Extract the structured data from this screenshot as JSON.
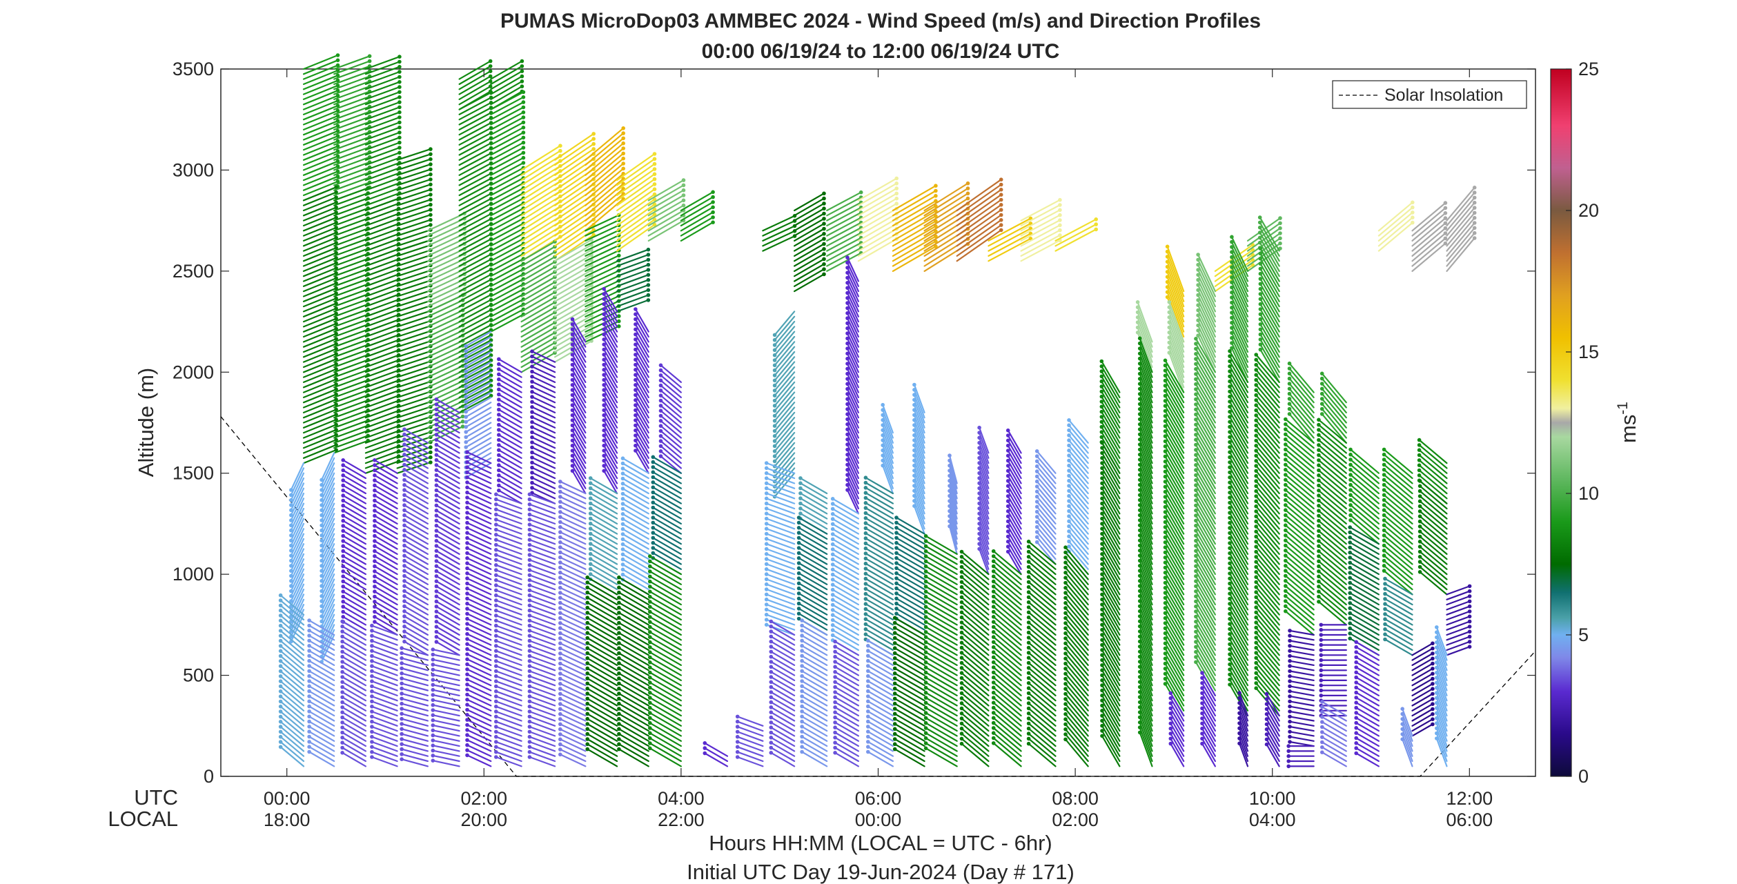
{
  "chart_data": {
    "type": "wind_barb_profile",
    "title": "PUMAS MicroDop03 AMMBEC 2024 - Wind Speed (m/s) and Direction Profiles",
    "subtitle": "00:00 06/19/24 to 12:00 06/19/24  UTC",
    "xlabel": "Hours HH:MM  (LOCAL = UTC - 6hr)",
    "xlabel2": "Initial UTC Day 19-Jun-2024 (Day # 171)",
    "ylabel": "Altitude (m)",
    "row_label_utc": "UTC",
    "row_label_local": "LOCAL",
    "xlim_hours": [
      -0.67,
      12.67
    ],
    "ylim": [
      0,
      3500
    ],
    "y_ticks": [
      0,
      500,
      1000,
      1500,
      2000,
      2500,
      3000,
      3500
    ],
    "y_tick_labels": [
      "0",
      "500",
      "1000",
      "1500",
      "2000",
      "2500",
      "3000",
      "3500"
    ],
    "x_ticks": [
      0,
      2,
      4,
      6,
      8,
      10,
      12
    ],
    "x_tick_utc": [
      "00:00",
      "02:00",
      "04:00",
      "06:00",
      "08:00",
      "10:00",
      "12:00"
    ],
    "x_tick_local": [
      "18:00",
      "20:00",
      "22:00",
      "00:00",
      "02:00",
      "04:00",
      "06:00"
    ],
    "legend": {
      "entries": [
        "Solar Insolation"
      ],
      "placement": "top-right",
      "style": "dashed"
    },
    "colorbar": {
      "label": "ms",
      "label_exp": "-1",
      "range": [
        0,
        25
      ],
      "ticks": [
        0,
        5,
        10,
        15,
        20,
        25
      ],
      "tick_labels": [
        "0",
        "5",
        "10",
        "15",
        "20",
        "25"
      ],
      "stops": [
        {
          "v": 0,
          "c": "#0d0a3a"
        },
        {
          "v": 1.5,
          "c": "#2a0a8a"
        },
        {
          "v": 3,
          "c": "#5a2ad0"
        },
        {
          "v": 4.2,
          "c": "#7f88e8"
        },
        {
          "v": 5,
          "c": "#70b0f0"
        },
        {
          "v": 5.6,
          "c": "#4aa0a8"
        },
        {
          "v": 6.5,
          "c": "#107070"
        },
        {
          "v": 7.5,
          "c": "#006b00"
        },
        {
          "v": 9,
          "c": "#1a9a1a"
        },
        {
          "v": 10.5,
          "c": "#60b860"
        },
        {
          "v": 12,
          "c": "#a8d8a0"
        },
        {
          "v": 12.5,
          "c": "#a8a8a8"
        },
        {
          "v": 13,
          "c": "#f0f0a0"
        },
        {
          "v": 14,
          "c": "#f0e030"
        },
        {
          "v": 15.5,
          "c": "#f0c000"
        },
        {
          "v": 17,
          "c": "#e0a020"
        },
        {
          "v": 18.5,
          "c": "#c07030"
        },
        {
          "v": 20,
          "c": "#7a5a40"
        },
        {
          "v": 21.5,
          "c": "#c06090"
        },
        {
          "v": 23,
          "c": "#f04070"
        },
        {
          "v": 25,
          "c": "#c00020"
        }
      ]
    },
    "solar_insolation": {
      "x_hours": [
        -0.67,
        2.33,
        11.5,
        12.67
      ],
      "y_m": [
        1780,
        0,
        0,
        620
      ]
    },
    "profiles": [
      {
        "t": 0.17,
        "segments": [
          [
            2850,
            3500,
            9,
            68
          ],
          [
            1550,
            2850,
            8,
            68
          ],
          [
            800,
            1550,
            5,
            205
          ],
          [
            50,
            800,
            5.2,
            310
          ]
        ]
      },
      {
        "t": 0.48,
        "segments": [
          [
            2850,
            3500,
            9.5,
            70
          ],
          [
            1600,
            2850,
            8.5,
            70
          ],
          [
            700,
            1600,
            5,
            205
          ],
          [
            50,
            700,
            4.5,
            300
          ]
        ]
      },
      {
        "t": 0.8,
        "segments": [
          [
            2800,
            3500,
            8.5,
            70
          ],
          [
            1500,
            2800,
            8,
            70
          ],
          [
            700,
            1500,
            3,
            300
          ],
          [
            50,
            700,
            3.5,
            300
          ]
        ]
      },
      {
        "t": 1.12,
        "segments": [
          [
            2600,
            3050,
            8,
            72
          ],
          [
            1500,
            2600,
            8,
            72
          ],
          [
            700,
            1500,
            3,
            300
          ],
          [
            50,
            700,
            3.5,
            290
          ]
        ]
      },
      {
        "t": 1.43,
        "segments": [
          [
            2300,
            2700,
            11,
            65
          ],
          [
            1650,
            2300,
            10,
            65
          ],
          [
            600,
            1650,
            3.5,
            300
          ],
          [
            50,
            600,
            3.5,
            285
          ]
        ]
      },
      {
        "t": 1.75,
        "segments": [
          [
            3300,
            3470,
            8.5,
            60
          ],
          [
            1800,
            3300,
            8.5,
            62
          ],
          [
            600,
            1800,
            3.2,
            300
          ],
          [
            50,
            600,
            3.5,
            282
          ]
        ]
      },
      {
        "t": 2.07,
        "segments": [
          [
            3300,
            3470,
            8.5,
            60
          ],
          [
            2200,
            3300,
            9,
            62
          ],
          [
            1550,
            2200,
            4.5,
            240
          ],
          [
            50,
            1550,
            3,
            295
          ]
        ]
      },
      {
        "t": 2.38,
        "segments": [
          [
            2550,
            3000,
            14,
            58
          ],
          [
            2000,
            2550,
            10,
            60
          ],
          [
            1350,
            2000,
            3,
            300
          ],
          [
            50,
            1350,
            3.5,
            290
          ]
        ]
      },
      {
        "t": 2.72,
        "segments": [
          [
            2550,
            3050,
            14.5,
            56
          ],
          [
            2050,
            2550,
            12,
            60
          ],
          [
            1350,
            2050,
            2.5,
            295
          ],
          [
            50,
            1350,
            3.5,
            290
          ]
        ]
      },
      {
        "t": 3.03,
        "segments": [
          [
            2700,
            3050,
            16,
            50
          ],
          [
            2150,
            2700,
            9,
            65
          ],
          [
            1400,
            2150,
            3,
            330
          ],
          [
            50,
            1400,
            4,
            295
          ]
        ]
      },
      {
        "t": 3.35,
        "segments": [
          [
            2600,
            2950,
            14,
            55
          ],
          [
            2300,
            2550,
            7,
            70
          ],
          [
            1400,
            2300,
            3,
            330
          ],
          [
            900,
            1400,
            5.5,
            300
          ],
          [
            50,
            900,
            7.5,
            300
          ]
        ]
      },
      {
        "t": 3.67,
        "segments": [
          [
            2650,
            2850,
            11,
            60
          ],
          [
            1500,
            2200,
            3,
            330
          ],
          [
            900,
            1500,
            5,
            300
          ],
          [
            50,
            900,
            7.5,
            300
          ]
        ]
      },
      {
        "t": 4.0,
        "segments": [
          [
            2650,
            2800,
            9,
            60
          ],
          [
            1500,
            1950,
            3.2,
            310
          ],
          [
            1000,
            1500,
            6.5,
            300
          ],
          [
            50,
            1000,
            8.5,
            300
          ]
        ]
      },
      {
        "t": 4.47,
        "segments": [
          [
            50,
            100,
            3,
            300
          ]
        ]
      },
      {
        "t": 4.83,
        "segments": [
          [
            2600,
            2700,
            8,
            65
          ],
          [
            50,
            250,
            3.5,
            290
          ]
        ]
      },
      {
        "t": 5.15,
        "segments": [
          [
            2400,
            2800,
            7.5,
            60
          ],
          [
            1500,
            2300,
            5.5,
            220
          ],
          [
            700,
            1500,
            5,
            290
          ],
          [
            50,
            700,
            3.5,
            300
          ]
        ]
      },
      {
        "t": 5.48,
        "segments": [
          [
            2500,
            2800,
            10,
            62
          ],
          [
            1200,
            1400,
            5.5,
            300
          ],
          [
            700,
            1200,
            6.5,
            300
          ],
          [
            50,
            700,
            4.5,
            300
          ]
        ]
      },
      {
        "t": 5.8,
        "segments": [
          [
            2550,
            2850,
            13,
            60
          ],
          [
            1300,
            2450,
            3,
            335
          ],
          [
            600,
            1300,
            5,
            300
          ],
          [
            50,
            600,
            3.5,
            300
          ]
        ]
      },
      {
        "t": 6.15,
        "segments": [
          [
            2500,
            2800,
            16,
            60
          ],
          [
            1400,
            1700,
            5,
            340
          ],
          [
            600,
            1400,
            6,
            300
          ],
          [
            50,
            600,
            4.5,
            300
          ]
        ]
      },
      {
        "t": 6.47,
        "segments": [
          [
            2500,
            2800,
            17,
            58
          ],
          [
            1200,
            1800,
            5,
            340
          ],
          [
            700,
            1200,
            6.5,
            300
          ],
          [
            50,
            700,
            7.5,
            300
          ]
        ]
      },
      {
        "t": 6.8,
        "segments": [
          [
            2550,
            2800,
            18.5,
            55
          ],
          [
            1100,
            1450,
            4.5,
            345
          ],
          [
            50,
            1100,
            8.5,
            300
          ]
        ]
      },
      {
        "t": 7.12,
        "segments": [
          [
            2550,
            2650,
            15,
            62
          ],
          [
            1000,
            1600,
            3.5,
            340
          ],
          [
            50,
            1000,
            8,
            310
          ]
        ]
      },
      {
        "t": 7.45,
        "segments": [
          [
            2550,
            2750,
            13,
            62
          ],
          [
            1000,
            1600,
            3,
            330
          ],
          [
            50,
            1000,
            8.5,
            310
          ]
        ]
      },
      {
        "t": 7.8,
        "segments": [
          [
            2600,
            2650,
            14,
            62
          ],
          [
            1050,
            1500,
            4.5,
            320
          ],
          [
            50,
            1050,
            8,
            310
          ]
        ]
      },
      {
        "t": 8.13,
        "segments": [
          [
            1000,
            1650,
            5,
            320
          ],
          [
            50,
            1000,
            8,
            320
          ]
        ]
      },
      {
        "t": 8.45,
        "segments": [
          [
            1500,
            1900,
            8.5,
            330
          ],
          [
            50,
            1500,
            8,
            330
          ]
        ]
      },
      {
        "t": 8.78,
        "segments": [
          [
            2000,
            2150,
            12,
            340
          ],
          [
            50,
            2000,
            8.5,
            340
          ]
        ]
      },
      {
        "t": 9.1,
        "segments": [
          [
            2150,
            2400,
            15,
            340
          ],
          [
            1900,
            2150,
            12,
            340
          ],
          [
            300,
            1900,
            9,
            330
          ],
          [
            50,
            300,
            3,
            330
          ]
        ]
      },
      {
        "t": 9.42,
        "segments": [
          [
            2400,
            2500,
            14,
            55
          ],
          [
            2000,
            2400,
            11,
            335
          ],
          [
            400,
            2000,
            10,
            330
          ],
          [
            50,
            400,
            3,
            330
          ]
        ]
      },
      {
        "t": 9.75,
        "segments": [
          [
            2500,
            2650,
            10.5,
            55
          ],
          [
            1950,
            2500,
            9.5,
            335
          ],
          [
            300,
            1950,
            8.5,
            330
          ],
          [
            50,
            300,
            2,
            340
          ]
        ]
      },
      {
        "t": 10.07,
        "segments": [
          [
            2450,
            2600,
            10,
            330
          ],
          [
            1950,
            2450,
            9.5,
            330
          ],
          [
            300,
            1950,
            8.5,
            320
          ],
          [
            50,
            300,
            2.5,
            330
          ]
        ]
      },
      {
        "t": 10.42,
        "segments": [
          [
            1650,
            1900,
            9.5,
            320
          ],
          [
            700,
            1650,
            9,
            310
          ],
          [
            150,
            700,
            2,
            280
          ],
          [
            50,
            150,
            2.5,
            270
          ]
        ]
      },
      {
        "t": 10.75,
        "segments": [
          [
            1650,
            1850,
            9.5,
            320
          ],
          [
            750,
            1650,
            8.5,
            310
          ],
          [
            300,
            750,
            2.5,
            270
          ],
          [
            50,
            300,
            4,
            300
          ]
        ]
      },
      {
        "t": 11.08,
        "segments": [
          [
            2600,
            2700,
            13,
            50
          ],
          [
            1150,
            1500,
            9,
            310
          ],
          [
            600,
            1150,
            7,
            300
          ],
          [
            50,
            600,
            3,
            300
          ]
        ]
      },
      {
        "t": 11.42,
        "segments": [
          [
            2500,
            2700,
            12.5,
            50
          ],
          [
            900,
            1500,
            9,
            310
          ],
          [
            600,
            900,
            6,
            300
          ],
          [
            200,
            600,
            1.5,
            60
          ],
          [
            50,
            200,
            4.5,
            340
          ]
        ]
      },
      {
        "t": 11.77,
        "segments": [
          [
            2500,
            2750,
            12.5,
            40
          ],
          [
            1350,
            1550,
            8.5,
            310
          ],
          [
            900,
            1350,
            8,
            310
          ],
          [
            600,
            900,
            2,
            70
          ],
          [
            50,
            600,
            5,
            340
          ]
        ]
      }
    ]
  }
}
